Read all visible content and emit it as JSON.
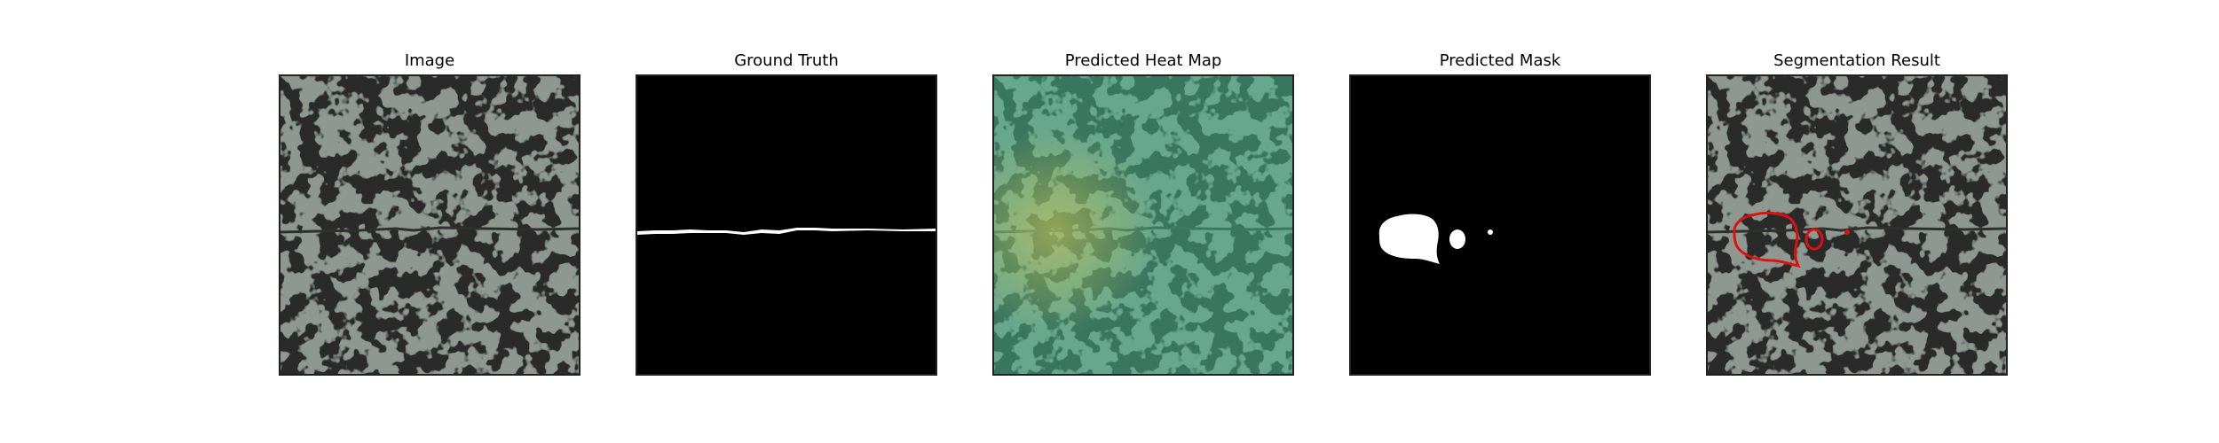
{
  "panels": [
    {
      "title": "Image"
    },
    {
      "title": "Ground Truth"
    },
    {
      "title": "Predicted Heat Map"
    },
    {
      "title": "Predicted Mask"
    },
    {
      "title": "Segmentation Result"
    }
  ],
  "colors": {
    "background": "#ffffff",
    "texture_light": "#8e9890",
    "texture_dark": "#2b2b2b",
    "mask_foreground": "#ffffff",
    "mask_background": "#000000",
    "heat_overlay": "#46b48c",
    "heat_hotspot": "#d8c850",
    "contour": "#e01010"
  },
  "icons": [
    "texture-image",
    "crack-ground-truth-mask",
    "heat-map-overlay",
    "predicted-blob-mask",
    "segmentation-contour-overlay"
  ]
}
